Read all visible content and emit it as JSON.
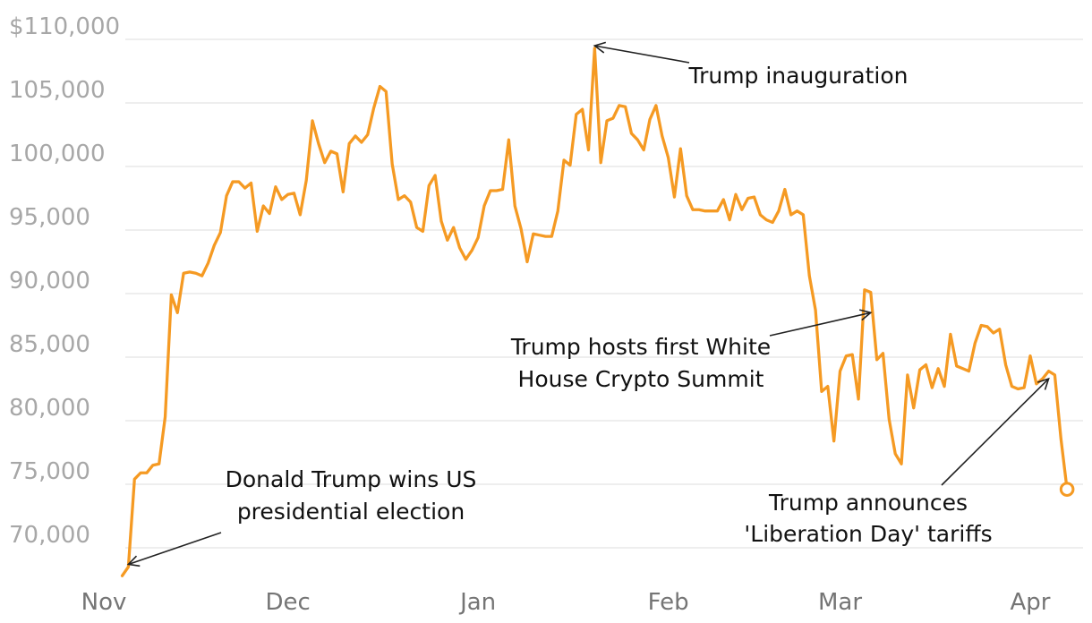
{
  "chart_data": {
    "type": "line",
    "title": "",
    "xlabel": "",
    "ylabel": "",
    "x_tick_labels": [
      "Nov",
      "Dec",
      "Jan",
      "Feb",
      "Mar",
      "Apr"
    ],
    "x_ticks": [
      "2024-11-01",
      "2024-12-01",
      "2025-01-01",
      "2025-02-01",
      "2025-03-01",
      "2025-04-01"
    ],
    "y_tick_labels": [
      "$110,000",
      "105,000",
      "100,000",
      "95,000",
      "90,000",
      "85,000",
      "80,000",
      "75,000",
      "70,000"
    ],
    "y_ticks": [
      110000,
      105000,
      100000,
      95000,
      90000,
      85000,
      80000,
      75000,
      70000
    ],
    "ylim": [
      68500,
      110500
    ],
    "xlim": [
      "2024-11-01",
      "2025-04-09"
    ],
    "grid": true,
    "line_color": "#f59a23",
    "series": [
      {
        "values": [
          [
            "2024-11-04",
            67800
          ],
          [
            "2024-11-05",
            68500
          ],
          [
            "2024-11-06",
            75400
          ],
          [
            "2024-11-07",
            75900
          ],
          [
            "2024-11-08",
            75900
          ],
          [
            "2024-11-09",
            76500
          ],
          [
            "2024-11-10",
            76600
          ],
          [
            "2024-11-11",
            80300
          ],
          [
            "2024-11-12",
            89900
          ],
          [
            "2024-11-13",
            88500
          ],
          [
            "2024-11-14",
            91600
          ],
          [
            "2024-11-15",
            91700
          ],
          [
            "2024-11-16",
            91600
          ],
          [
            "2024-11-17",
            91400
          ],
          [
            "2024-11-18",
            92400
          ],
          [
            "2024-11-19",
            93800
          ],
          [
            "2024-11-20",
            94800
          ],
          [
            "2024-11-21",
            97700
          ],
          [
            "2024-11-22",
            98800
          ],
          [
            "2024-11-23",
            98800
          ],
          [
            "2024-11-24",
            98300
          ],
          [
            "2024-11-25",
            98700
          ],
          [
            "2024-11-26",
            94900
          ],
          [
            "2024-11-27",
            96900
          ],
          [
            "2024-11-28",
            96300
          ],
          [
            "2024-11-29",
            98400
          ],
          [
            "2024-11-30",
            97400
          ],
          [
            "2024-12-01",
            97800
          ],
          [
            "2024-12-02",
            97900
          ],
          [
            "2024-12-03",
            96200
          ],
          [
            "2024-12-04",
            98900
          ],
          [
            "2024-12-05",
            103600
          ],
          [
            "2024-12-06",
            101800
          ],
          [
            "2024-12-07",
            100300
          ],
          [
            "2024-12-08",
            101200
          ],
          [
            "2024-12-09",
            101000
          ],
          [
            "2024-12-10",
            98000
          ],
          [
            "2024-12-11",
            101800
          ],
          [
            "2024-12-12",
            102400
          ],
          [
            "2024-12-13",
            101900
          ],
          [
            "2024-12-14",
            102500
          ],
          [
            "2024-12-15",
            104600
          ],
          [
            "2024-12-16",
            106300
          ],
          [
            "2024-12-17",
            105900
          ],
          [
            "2024-12-18",
            100200
          ],
          [
            "2024-12-19",
            97400
          ],
          [
            "2024-12-20",
            97700
          ],
          [
            "2024-12-21",
            97200
          ],
          [
            "2024-12-22",
            95200
          ],
          [
            "2024-12-23",
            94900
          ],
          [
            "2024-12-24",
            98500
          ],
          [
            "2024-12-25",
            99300
          ],
          [
            "2024-12-26",
            95700
          ],
          [
            "2024-12-27",
            94200
          ],
          [
            "2024-12-28",
            95200
          ],
          [
            "2024-12-29",
            93600
          ],
          [
            "2024-12-30",
            92700
          ],
          [
            "2024-12-31",
            93400
          ],
          [
            "2025-01-01",
            94400
          ],
          [
            "2025-01-02",
            96900
          ],
          [
            "2025-01-03",
            98100
          ],
          [
            "2025-01-04",
            98100
          ],
          [
            "2025-01-05",
            98200
          ],
          [
            "2025-01-06",
            102100
          ],
          [
            "2025-01-07",
            96900
          ],
          [
            "2025-01-08",
            95100
          ],
          [
            "2025-01-09",
            92500
          ],
          [
            "2025-01-10",
            94700
          ],
          [
            "2025-01-11",
            94600
          ],
          [
            "2025-01-12",
            94500
          ],
          [
            "2025-01-13",
            94500
          ],
          [
            "2025-01-14",
            96500
          ],
          [
            "2025-01-15",
            100500
          ],
          [
            "2025-01-16",
            100100
          ],
          [
            "2025-01-17",
            104100
          ],
          [
            "2025-01-18",
            104500
          ],
          [
            "2025-01-19",
            101300
          ],
          [
            "2025-01-20",
            109300
          ],
          [
            "2025-01-21",
            100300
          ],
          [
            "2025-01-22",
            103600
          ],
          [
            "2025-01-23",
            103800
          ],
          [
            "2025-01-24",
            104800
          ],
          [
            "2025-01-25",
            104700
          ],
          [
            "2025-01-26",
            102600
          ],
          [
            "2025-01-27",
            102100
          ],
          [
            "2025-01-28",
            101300
          ],
          [
            "2025-01-29",
            103700
          ],
          [
            "2025-01-30",
            104800
          ],
          [
            "2025-01-31",
            102400
          ],
          [
            "2025-02-01",
            100700
          ],
          [
            "2025-02-02",
            97600
          ],
          [
            "2025-02-03",
            101400
          ],
          [
            "2025-02-04",
            97700
          ],
          [
            "2025-02-05",
            96600
          ],
          [
            "2025-02-06",
            96600
          ],
          [
            "2025-02-07",
            96500
          ],
          [
            "2025-02-08",
            96500
          ],
          [
            "2025-02-09",
            96500
          ],
          [
            "2025-02-10",
            97400
          ],
          [
            "2025-02-11",
            95800
          ],
          [
            "2025-02-12",
            97800
          ],
          [
            "2025-02-13",
            96600
          ],
          [
            "2025-02-14",
            97500
          ],
          [
            "2025-02-15",
            97600
          ],
          [
            "2025-02-16",
            96200
          ],
          [
            "2025-02-17",
            95800
          ],
          [
            "2025-02-18",
            95600
          ],
          [
            "2025-02-19",
            96500
          ],
          [
            "2025-02-20",
            98200
          ],
          [
            "2025-02-21",
            96200
          ],
          [
            "2025-02-22",
            96500
          ],
          [
            "2025-02-23",
            96200
          ],
          [
            "2025-02-24",
            91400
          ],
          [
            "2025-02-25",
            88700
          ],
          [
            "2025-02-26",
            82300
          ],
          [
            "2025-02-27",
            82700
          ],
          [
            "2025-02-28",
            78400
          ],
          [
            "2025-03-01",
            83900
          ],
          [
            "2025-03-02",
            85100
          ],
          [
            "2025-03-03",
            85200
          ],
          [
            "2025-03-04",
            81700
          ],
          [
            "2025-03-05",
            90300
          ],
          [
            "2025-03-06",
            90100
          ],
          [
            "2025-03-07",
            84800
          ],
          [
            "2025-03-08",
            85300
          ],
          [
            "2025-03-09",
            80100
          ],
          [
            "2025-03-10",
            77400
          ],
          [
            "2025-03-11",
            76600
          ],
          [
            "2025-03-12",
            83600
          ],
          [
            "2025-03-13",
            81000
          ],
          [
            "2025-03-14",
            84000
          ],
          [
            "2025-03-15",
            84400
          ],
          [
            "2025-03-16",
            82600
          ],
          [
            "2025-03-17",
            84100
          ],
          [
            "2025-03-18",
            82700
          ],
          [
            "2025-03-19",
            86800
          ],
          [
            "2025-03-20",
            84300
          ],
          [
            "2025-03-21",
            84100
          ],
          [
            "2025-03-22",
            83900
          ],
          [
            "2025-03-23",
            86100
          ],
          [
            "2025-03-24",
            87500
          ],
          [
            "2025-03-25",
            87400
          ],
          [
            "2025-03-26",
            86900
          ],
          [
            "2025-03-27",
            87200
          ],
          [
            "2025-03-28",
            84400
          ],
          [
            "2025-03-29",
            82700
          ],
          [
            "2025-03-30",
            82500
          ],
          [
            "2025-03-31",
            82600
          ],
          [
            "2025-04-01",
            85100
          ],
          [
            "2025-04-02",
            82900
          ],
          [
            "2025-04-03",
            83300
          ],
          [
            "2025-04-04",
            83900
          ],
          [
            "2025-04-05",
            83600
          ],
          [
            "2025-04-06",
            78600
          ],
          [
            "2025-04-07",
            74600
          ]
        ]
      }
    ],
    "annotations": [
      {
        "id": "election",
        "lines": [
          "Donald Trump wins US",
          "presidential election"
        ],
        "target_date": "2024-11-05",
        "target_value": 68700
      },
      {
        "id": "inauguration",
        "lines": [
          "Trump inauguration"
        ],
        "target_date": "2025-01-20",
        "target_value": 109500
      },
      {
        "id": "crypto-summit",
        "lines": [
          "Trump hosts first White",
          "House Crypto Summit"
        ],
        "target_date": "2025-03-06",
        "target_value": 88500
      },
      {
        "id": "liberation-day",
        "lines": [
          "Trump announces",
          "'Liberation Day' tariffs"
        ],
        "target_date": "2025-04-04",
        "target_value": 83300
      }
    ]
  }
}
